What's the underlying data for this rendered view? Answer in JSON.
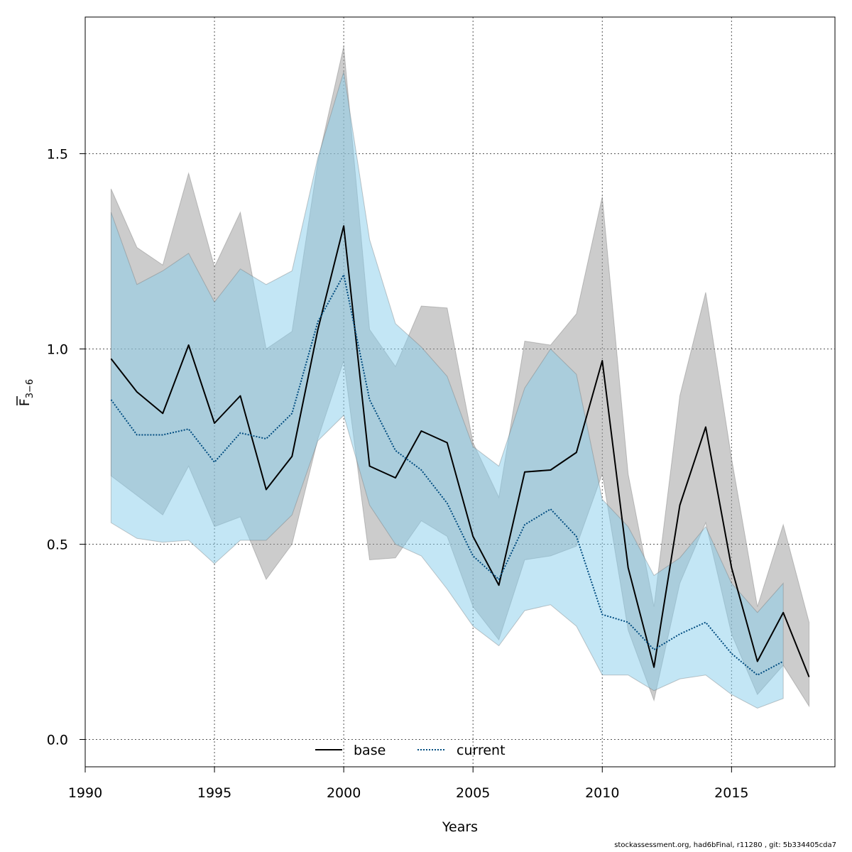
{
  "chart_data": {
    "type": "line",
    "xlabel": "Years",
    "ylabel": {
      "main": "F",
      "subscript": "3−6"
    },
    "xlim": [
      1990,
      2019
    ],
    "ylim": [
      -0.07,
      1.85
    ],
    "x_ticks": [
      "1990",
      "1995",
      "2000",
      "2005",
      "2010",
      "2015"
    ],
    "y_ticks": [
      "0.0",
      "0.5",
      "1.0",
      "1.5"
    ],
    "grid": true,
    "legend_placement": "bottom",
    "legend": [
      {
        "label": "base",
        "style": "solid",
        "color": "#000000"
      },
      {
        "label": "current",
        "style": "dotted",
        "color": "#004c80"
      }
    ],
    "series": [
      {
        "name": "base",
        "line_color": "#000000",
        "band_color": "#999999",
        "x": [
          1991,
          1992,
          1993,
          1994,
          1995,
          1996,
          1997,
          1998,
          1999,
          2000,
          2001,
          2002,
          2003,
          2004,
          2005,
          2006,
          2007,
          2008,
          2009,
          2010,
          2011,
          2012,
          2013,
          2014,
          2015,
          2016,
          2017,
          2018
        ],
        "values": [
          0.975,
          0.89,
          0.835,
          1.01,
          0.81,
          0.88,
          0.64,
          0.725,
          1.05,
          1.315,
          0.7,
          0.67,
          0.79,
          0.76,
          0.52,
          0.395,
          0.685,
          0.69,
          0.735,
          0.97,
          0.44,
          0.185,
          0.6,
          0.8,
          0.44,
          0.2,
          0.325,
          0.16
        ],
        "upper": [
          1.41,
          1.26,
          1.215,
          1.45,
          1.21,
          1.35,
          1.0,
          1.045,
          1.48,
          1.775,
          1.05,
          0.955,
          1.11,
          1.105,
          0.76,
          0.62,
          1.02,
          1.01,
          1.09,
          1.39,
          0.68,
          0.34,
          0.88,
          1.145,
          0.72,
          0.34,
          0.55,
          0.3
        ],
        "lower": [
          0.675,
          0.625,
          0.575,
          0.7,
          0.545,
          0.57,
          0.41,
          0.5,
          0.77,
          0.97,
          0.46,
          0.465,
          0.56,
          0.52,
          0.34,
          0.255,
          0.46,
          0.47,
          0.495,
          0.68,
          0.28,
          0.1,
          0.4,
          0.555,
          0.27,
          0.115,
          0.19,
          0.085
        ]
      },
      {
        "name": "current",
        "line_color": "#004c80",
        "band_color": "#87ceeb",
        "x": [
          1991,
          1992,
          1993,
          1994,
          1995,
          1996,
          1997,
          1998,
          1999,
          2000,
          2001,
          2002,
          2003,
          2004,
          2005,
          2006,
          2007,
          2008,
          2009,
          2010,
          2011,
          2012,
          2013,
          2014,
          2015,
          2016,
          2017
        ],
        "values": [
          0.87,
          0.78,
          0.78,
          0.795,
          0.71,
          0.785,
          0.77,
          0.835,
          1.07,
          1.19,
          0.87,
          0.74,
          0.69,
          0.605,
          0.47,
          0.41,
          0.55,
          0.59,
          0.52,
          0.32,
          0.3,
          0.23,
          0.27,
          0.3,
          0.22,
          0.165,
          0.2
        ],
        "upper": [
          1.35,
          1.165,
          1.2,
          1.245,
          1.12,
          1.205,
          1.165,
          1.2,
          1.49,
          1.71,
          1.28,
          1.065,
          1.005,
          0.93,
          0.75,
          0.7,
          0.9,
          1.0,
          0.935,
          0.615,
          0.545,
          0.42,
          0.465,
          0.545,
          0.4,
          0.325,
          0.4
        ],
        "lower": [
          0.555,
          0.515,
          0.505,
          0.51,
          0.45,
          0.51,
          0.51,
          0.575,
          0.765,
          0.83,
          0.6,
          0.5,
          0.47,
          0.385,
          0.29,
          0.24,
          0.33,
          0.345,
          0.29,
          0.165,
          0.165,
          0.125,
          0.155,
          0.165,
          0.115,
          0.08,
          0.105
        ]
      }
    ]
  },
  "footer": "stockassessment.org, had6bFinal, r11280 , git: 5b334405cda7"
}
